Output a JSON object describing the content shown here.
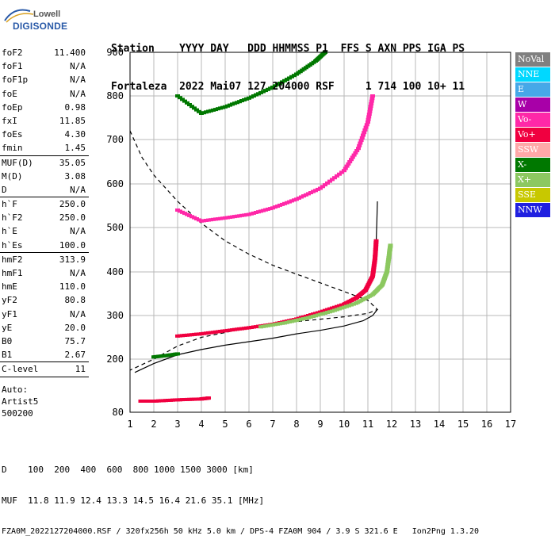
{
  "logo": {
    "line1": "Lowell",
    "line2": "DIGISONDE"
  },
  "header": {
    "line1": "Station    YYYY DAY   DDD HHMMSS P1  FFS S AXN PPS IGA PS",
    "line2": "Fortaleza  2022 Mai07 127 204000 RSF     1 714 100 10+ 11"
  },
  "params": [
    [
      {
        "name": "foF2",
        "value": "11.400"
      },
      {
        "name": "foF1",
        "value": "N/A"
      },
      {
        "name": "foF1p",
        "value": "N/A"
      },
      {
        "name": "foE",
        "value": "N/A"
      },
      {
        "name": "foEp",
        "value": "0.98"
      },
      {
        "name": "fxI",
        "value": "11.85"
      },
      {
        "name": "foEs",
        "value": "4.30"
      },
      {
        "name": "fmin",
        "value": "1.45"
      }
    ],
    [
      {
        "name": "MUF(D)",
        "value": "35.05"
      },
      {
        "name": "M(D)",
        "value": "3.08"
      },
      {
        "name": "D",
        "value": "N/A"
      }
    ],
    [
      {
        "name": "h`F",
        "value": "250.0"
      },
      {
        "name": "h`F2",
        "value": "250.0"
      },
      {
        "name": "h`E",
        "value": "N/A"
      },
      {
        "name": "h`Es",
        "value": "100.0"
      }
    ],
    [
      {
        "name": "hmF2",
        "value": "313.9"
      },
      {
        "name": "hmF1",
        "value": "N/A"
      },
      {
        "name": "hmE",
        "value": "110.0"
      },
      {
        "name": "yF2",
        "value": "80.8"
      },
      {
        "name": "yF1",
        "value": "N/A"
      },
      {
        "name": "yE",
        "value": "20.0"
      },
      {
        "name": "B0",
        "value": "75.7"
      },
      {
        "name": "B1",
        "value": "2.67"
      }
    ],
    [
      {
        "name": "C-level",
        "value": "11"
      }
    ]
  ],
  "auto": {
    "line1": "Auto:",
    "line2": "Artist5",
    "line3": "500200"
  },
  "legend": [
    {
      "label": "NoVal",
      "color": "#808080"
    },
    {
      "label": "NNE",
      "color": "#00d8ff"
    },
    {
      "label": "E",
      "color": "#46a8e8"
    },
    {
      "label": "W",
      "color": "#a800a8"
    },
    {
      "label": "Vo-",
      "color": "#ff28a8"
    },
    {
      "label": "Vo+",
      "color": "#f00040"
    },
    {
      "label": "SSW",
      "color": "#ffa8a8"
    },
    {
      "label": "X-",
      "color": "#007800"
    },
    {
      "label": "X+",
      "color": "#8cc860"
    },
    {
      "label": "SSE",
      "color": "#c8c800"
    },
    {
      "label": "NNW",
      "color": "#2020e0"
    }
  ],
  "footer": {
    "line1": "D    100  200  400  600  800 1000 1500 3000 [km]",
    "line2": "MUF  11.8 11.9 12.4 13.3 14.5 16.4 21.6 35.1 [MHz]",
    "line3": "FZA0M_2022127204000.RSF / 320fx256h 50 kHz 5.0 km / DPS-4 FZA0M 904 / 3.9 S 321.6 E   Ion2Png 1.3.20"
  },
  "chart_data": {
    "type": "scatter",
    "title": "",
    "xlabel": "",
    "ylabel": "",
    "xlim": [
      1,
      17
    ],
    "ylim": [
      80,
      900
    ],
    "x_ticks": [
      "1",
      "2",
      "3",
      "4",
      "5",
      "6",
      "7",
      "8",
      "9",
      "10",
      "11",
      "12",
      "13",
      "14",
      "15",
      "16",
      "17"
    ],
    "y_ticks": [
      "80",
      "200",
      "300",
      "400",
      "500",
      "600",
      "700",
      "800",
      "900"
    ],
    "grid": true,
    "traces": [
      {
        "name": "F2 O-trace",
        "color": "#f00040",
        "points": [
          [
            3.0,
            253
          ],
          [
            4.0,
            258
          ],
          [
            5.0,
            265
          ],
          [
            6.0,
            272
          ],
          [
            7.0,
            280
          ],
          [
            8.0,
            292
          ],
          [
            9.0,
            308
          ],
          [
            10.0,
            326
          ],
          [
            10.5,
            340
          ],
          [
            10.9,
            358
          ],
          [
            11.2,
            390
          ],
          [
            11.3,
            430
          ],
          [
            11.35,
            470
          ]
        ]
      },
      {
        "name": "F2 X-trace",
        "color": "#8cc860",
        "points": [
          [
            6.5,
            274
          ],
          [
            7.5,
            283
          ],
          [
            8.5,
            295
          ],
          [
            9.5,
            310
          ],
          [
            10.5,
            328
          ],
          [
            11.2,
            348
          ],
          [
            11.6,
            370
          ],
          [
            11.8,
            400
          ],
          [
            11.9,
            440
          ],
          [
            11.95,
            460
          ]
        ]
      },
      {
        "name": "Multi-hop 2F",
        "color": "#ff28a8",
        "points": [
          [
            3.0,
            540
          ],
          [
            4.0,
            515
          ],
          [
            5.0,
            522
          ],
          [
            6.0,
            530
          ],
          [
            7.0,
            545
          ],
          [
            8.0,
            565
          ],
          [
            9.0,
            590
          ],
          [
            10.0,
            630
          ],
          [
            10.6,
            680
          ],
          [
            11.0,
            740
          ],
          [
            11.2,
            800
          ]
        ]
      },
      {
        "name": "Multi-hop 3F",
        "color": "#007800",
        "points": [
          [
            3.0,
            800
          ],
          [
            4.0,
            760
          ],
          [
            5.0,
            775
          ],
          [
            6.0,
            795
          ],
          [
            7.0,
            820
          ],
          [
            8.0,
            850
          ],
          [
            8.8,
            880
          ],
          [
            9.2,
            900
          ]
        ]
      },
      {
        "name": "Es",
        "color": "#f00040",
        "points": [
          [
            1.45,
            105
          ],
          [
            2.0,
            105
          ],
          [
            3.0,
            108
          ],
          [
            4.0,
            110
          ],
          [
            4.3,
            112
          ]
        ]
      },
      {
        "name": "Es extension",
        "color": "#007800",
        "points": [
          [
            2.0,
            205
          ],
          [
            2.5,
            208
          ],
          [
            3.0,
            212
          ]
        ]
      }
    ],
    "profile_solid": [
      [
        1.2,
        170
      ],
      [
        2.0,
        190
      ],
      [
        3.0,
        210
      ],
      [
        4.0,
        222
      ],
      [
        5.0,
        232
      ],
      [
        6.0,
        240
      ],
      [
        7.0,
        248
      ],
      [
        8.0,
        258
      ],
      [
        9.0,
        266
      ],
      [
        10.0,
        276
      ],
      [
        10.8,
        288
      ],
      [
        11.2,
        300
      ],
      [
        11.4,
        313.9
      ]
    ],
    "profile_dashed": [
      [
        1.0,
        720
      ],
      [
        1.5,
        660
      ],
      [
        2.0,
        620
      ],
      [
        3.0,
        560
      ],
      [
        4.0,
        510
      ],
      [
        5.0,
        470
      ],
      [
        6.0,
        440
      ],
      [
        7.0,
        415
      ],
      [
        8.0,
        395
      ],
      [
        9.0,
        375
      ],
      [
        10.0,
        355
      ],
      [
        11.0,
        335
      ],
      [
        11.4,
        313.9
      ],
      [
        11.0,
        305
      ],
      [
        10.0,
        297
      ],
      [
        8.0,
        286
      ],
      [
        6.0,
        272
      ],
      [
        4.0,
        250
      ],
      [
        3.0,
        230
      ],
      [
        2.0,
        200
      ],
      [
        1.0,
        175
      ]
    ],
    "profile_foF2_curve": [
      [
        11.35,
        470
      ],
      [
        11.38,
        520
      ],
      [
        11.4,
        560
      ]
    ]
  }
}
